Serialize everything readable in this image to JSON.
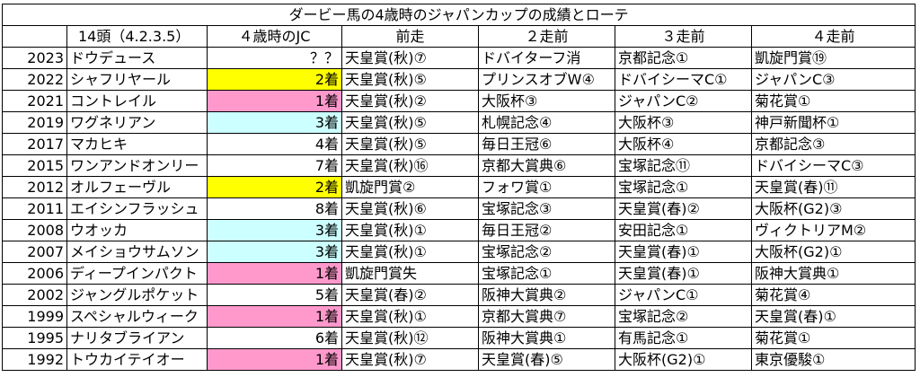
{
  "title": "ダービー馬の4歳時のジャパンカップの成績とローテ",
  "headers": {
    "count": "14頭（4.2.3.5）",
    "jc": "４歳時のJC",
    "prev1": "前走",
    "prev2": "２走前",
    "prev3": "３走前",
    "prev4": "４走前"
  },
  "highlight_colors": {
    "yellow": "#ffff00",
    "pink": "#ff99cc",
    "blue": "#ccffff"
  },
  "rows": [
    {
      "year": "2023",
      "horse": "ドウデュース",
      "jc": "？？",
      "hl": "none",
      "p1": "天皇賞(秋)⑦",
      "p2": "ドバイターフ消",
      "p3": "京都記念①",
      "p4": "凱旋門賞⑲"
    },
    {
      "year": "2022",
      "horse": "シャフリヤール",
      "jc": "2着",
      "hl": "yellow",
      "p1": "天皇賞(秋)⑤",
      "p2": "プリンスオブW④",
      "p3": "ドバイシーマC①",
      "p4": "ジャパンC③"
    },
    {
      "year": "2021",
      "horse": "コントレイル",
      "jc": "1着",
      "hl": "pink",
      "p1": "天皇賞(秋)②",
      "p2": "大阪杯③",
      "p3": "ジャパンC②",
      "p4": "菊花賞①"
    },
    {
      "year": "2019",
      "horse": "ワグネリアン",
      "jc": "3着",
      "hl": "blue",
      "p1": "天皇賞(秋)⑤",
      "p2": "札幌記念④",
      "p3": "大阪杯③",
      "p4": "神戸新聞杯①"
    },
    {
      "year": "2017",
      "horse": "マカヒキ",
      "jc": "4着",
      "hl": "none",
      "p1": "天皇賞(秋)⑤",
      "p2": "毎日王冠⑥",
      "p3": "大阪杯④",
      "p4": "京都記念③"
    },
    {
      "year": "2015",
      "horse": "ワンアンドオンリー",
      "jc": "7着",
      "hl": "none",
      "p1": "天皇賞(秋)⑯",
      "p2": "京都大賞典⑥",
      "p3": "宝塚記念⑪",
      "p4": "ドバイシーマC③"
    },
    {
      "year": "2012",
      "horse": "オルフェーヴル",
      "jc": "2着",
      "hl": "yellow",
      "p1": "凱旋門賞②",
      "p2": "フォワ賞①",
      "p3": "宝塚記念①",
      "p4": "天皇賞(春)⑪"
    },
    {
      "year": "2011",
      "horse": "エイシンフラッシュ",
      "jc": "8着",
      "hl": "none",
      "p1": "天皇賞(秋)⑥",
      "p2": "宝塚記念③",
      "p3": "天皇賞(春)②",
      "p4": "大阪杯(G2)③"
    },
    {
      "year": "2008",
      "horse": "ウオッカ",
      "jc": "3着",
      "hl": "blue",
      "p1": "天皇賞(秋)①",
      "p2": "毎日王冠②",
      "p3": "安田記念①",
      "p4": "ヴィクトリアM②"
    },
    {
      "year": "2007",
      "horse": "メイショウサムソン",
      "jc": "3着",
      "hl": "blue",
      "p1": "天皇賞(秋)①",
      "p2": "宝塚記念②",
      "p3": "天皇賞(春)①",
      "p4": "大阪杯(G2)①"
    },
    {
      "year": "2006",
      "horse": "ディープインパクト",
      "jc": "1着",
      "hl": "pink",
      "p1": "凱旋門賞失",
      "p2": "宝塚記念①",
      "p3": "天皇賞(春)①",
      "p4": "阪神大賞典①"
    },
    {
      "year": "2002",
      "horse": "ジャングルポケット",
      "jc": "5着",
      "hl": "none",
      "p1": "天皇賞(春)②",
      "p2": "阪神大賞典②",
      "p3": "ジャパンC①",
      "p4": "菊花賞④"
    },
    {
      "year": "1999",
      "horse": "スペシャルウィーク",
      "jc": "1着",
      "hl": "pink",
      "p1": "天皇賞(秋)①",
      "p2": "京都大賞典⑦",
      "p3": "宝塚記念②",
      "p4": "天皇賞(春)①"
    },
    {
      "year": "1995",
      "horse": "ナリタブライアン",
      "jc": "6着",
      "hl": "none",
      "p1": "天皇賞(秋)⑫",
      "p2": "阪神大賞典①",
      "p3": "有馬記念①",
      "p4": "菊花賞①"
    },
    {
      "year": "1992",
      "horse": "トウカイテイオー",
      "jc": "1着",
      "hl": "pink",
      "p1": "天皇賞(秋)⑦",
      "p2": "天皇賞(春)⑤",
      "p3": "大阪杯(G2)①",
      "p4": "東京優駿①"
    }
  ]
}
